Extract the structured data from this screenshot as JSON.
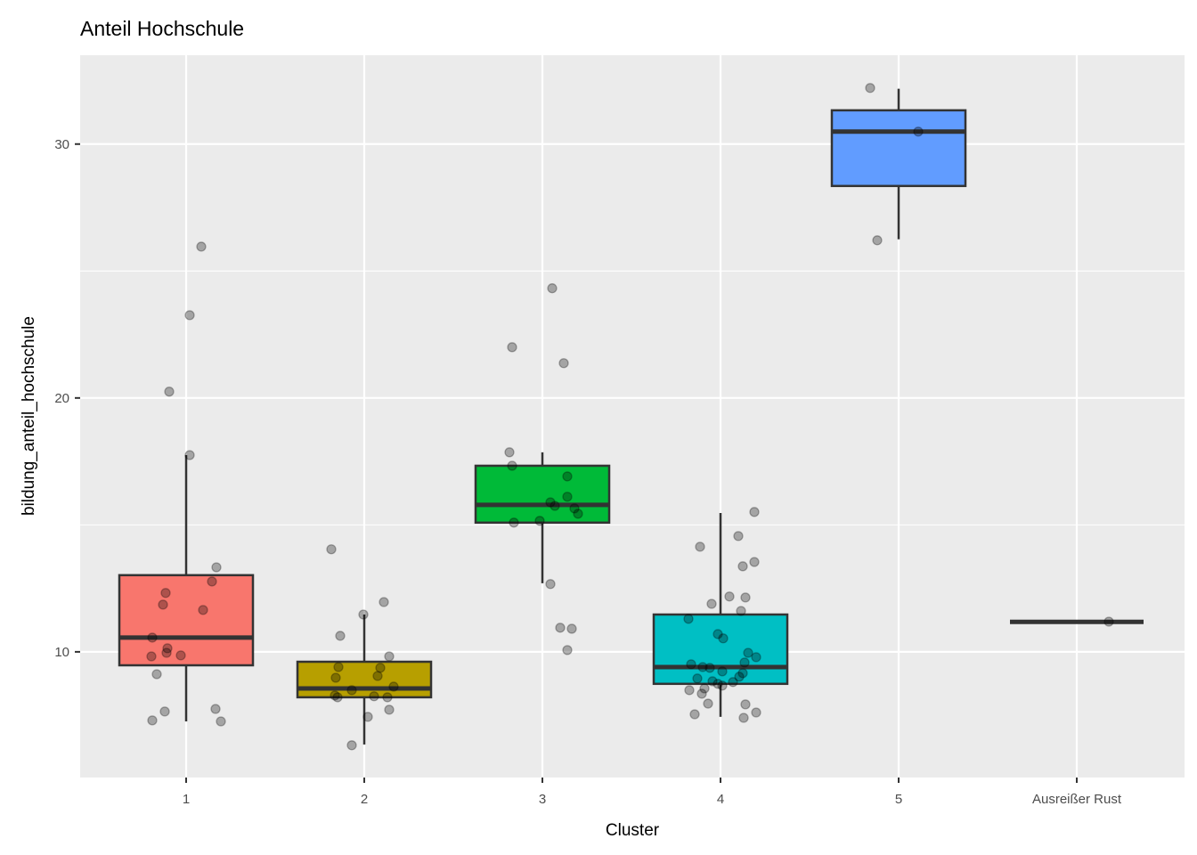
{
  "chart_data": {
    "type": "boxplot",
    "title": "Anteil Hochschule",
    "xlabel": "Cluster",
    "ylabel": "bildung_anteil_hochschule",
    "categories": [
      "1",
      "2",
      "3",
      "4",
      "5",
      "Ausreißer Rust"
    ],
    "ylim": [
      5.05,
      33.5
    ],
    "yticks": [
      10,
      20,
      30
    ],
    "grid": true,
    "colors": [
      "#F8766D",
      "#B79F00",
      "#00BA38",
      "#00BFC4",
      "#619CFF",
      "#F564E3"
    ],
    "boxes": [
      {
        "cluster": "1",
        "whisker_low": 7.26,
        "q1": 9.47,
        "median": 10.56,
        "q3": 13.02,
        "whisker_high": 17.75
      },
      {
        "cluster": "2",
        "whisker_low": 6.35,
        "q1": 8.21,
        "median": 8.56,
        "q3": 9.61,
        "whisker_high": 11.47
      },
      {
        "cluster": "3",
        "whisker_low": 12.7,
        "q1": 15.09,
        "median": 15.79,
        "q3": 17.33,
        "whisker_high": 17.86
      },
      {
        "cluster": "4",
        "whisker_low": 7.44,
        "q1": 8.74,
        "median": 9.4,
        "q3": 11.47,
        "whisker_high": 15.47
      },
      {
        "cluster": "5",
        "whisker_low": 26.25,
        "q1": 28.35,
        "median": 30.49,
        "q3": 31.33,
        "whisker_high": 32.18
      },
      {
        "cluster": "Ausreißer Rust",
        "whisker_low": 11.18,
        "q1": 11.18,
        "median": 11.18,
        "q3": 11.18,
        "whisker_high": 11.18
      }
    ],
    "points": [
      [
        [
          0.085,
          25.96
        ],
        [
          0.02,
          23.26
        ],
        [
          -0.095,
          20.25
        ],
        [
          0.02,
          17.75
        ],
        [
          0.17,
          13.33
        ],
        [
          0.145,
          12.77
        ],
        [
          -0.115,
          12.32
        ],
        [
          -0.13,
          11.86
        ],
        [
          0.095,
          11.65
        ],
        [
          -0.19,
          10.56
        ],
        [
          -0.105,
          10.14
        ],
        [
          -0.11,
          9.96
        ],
        [
          -0.195,
          9.82
        ],
        [
          -0.03,
          9.86
        ],
        [
          -0.165,
          9.12
        ],
        [
          -0.12,
          7.65
        ],
        [
          -0.19,
          7.3
        ],
        [
          0.165,
          7.75
        ],
        [
          0.195,
          7.26
        ]
      ],
      [
        [
          -0.185,
          14.04
        ],
        [
          -0.135,
          10.63
        ],
        [
          -0.005,
          11.47
        ],
        [
          0.11,
          11.96
        ],
        [
          0.14,
          9.82
        ],
        [
          -0.145,
          9.4
        ],
        [
          0.09,
          9.37
        ],
        [
          -0.16,
          8.98
        ],
        [
          0.075,
          9.05
        ],
        [
          0.165,
          8.63
        ],
        [
          -0.07,
          8.49
        ],
        [
          -0.165,
          8.28
        ],
        [
          -0.15,
          8.21
        ],
        [
          0.055,
          8.25
        ],
        [
          0.13,
          8.21
        ],
        [
          0.14,
          7.72
        ],
        [
          0.02,
          7.44
        ],
        [
          -0.07,
          6.32
        ]
      ],
      [
        [
          0.055,
          24.32
        ],
        [
          -0.17,
          22.0
        ],
        [
          0.12,
          21.37
        ],
        [
          -0.185,
          17.86
        ],
        [
          -0.17,
          17.33
        ],
        [
          0.14,
          16.91
        ],
        [
          0.14,
          16.11
        ],
        [
          0.045,
          15.89
        ],
        [
          0.07,
          15.75
        ],
        [
          0.18,
          15.65
        ],
        [
          0.2,
          15.44
        ],
        [
          -0.015,
          15.16
        ],
        [
          -0.16,
          15.09
        ],
        [
          0.045,
          12.67
        ],
        [
          0.1,
          10.95
        ],
        [
          0.165,
          10.91
        ],
        [
          0.14,
          10.07
        ]
      ],
      [
        [
          0.19,
          15.51
        ],
        [
          0.1,
          14.56
        ],
        [
          -0.115,
          14.14
        ],
        [
          0.19,
          13.54
        ],
        [
          0.125,
          13.37
        ],
        [
          0.05,
          12.18
        ],
        [
          0.14,
          12.14
        ],
        [
          -0.05,
          11.89
        ],
        [
          0.115,
          11.61
        ],
        [
          -0.18,
          11.3
        ],
        [
          -0.015,
          10.7
        ],
        [
          0.015,
          10.53
        ],
        [
          0.155,
          9.96
        ],
        [
          0.2,
          9.79
        ],
        [
          0.135,
          9.58
        ],
        [
          -0.165,
          9.51
        ],
        [
          -0.1,
          9.4
        ],
        [
          -0.06,
          9.37
        ],
        [
          0.01,
          9.23
        ],
        [
          0.125,
          9.16
        ],
        [
          0.105,
          9.02
        ],
        [
          -0.13,
          8.95
        ],
        [
          -0.045,
          8.84
        ],
        [
          0.07,
          8.81
        ],
        [
          -0.015,
          8.74
        ],
        [
          0.01,
          8.67
        ],
        [
          -0.175,
          8.49
        ],
        [
          -0.09,
          8.56
        ],
        [
          -0.105,
          8.35
        ],
        [
          -0.07,
          7.96
        ],
        [
          0.14,
          7.93
        ],
        [
          -0.145,
          7.54
        ],
        [
          0.2,
          7.61
        ],
        [
          0.13,
          7.4
        ]
      ],
      [
        [
          -0.16,
          32.21
        ],
        [
          0.11,
          30.49
        ],
        [
          -0.12,
          26.21
        ]
      ],
      [
        [
          0.18,
          11.19
        ]
      ]
    ]
  }
}
